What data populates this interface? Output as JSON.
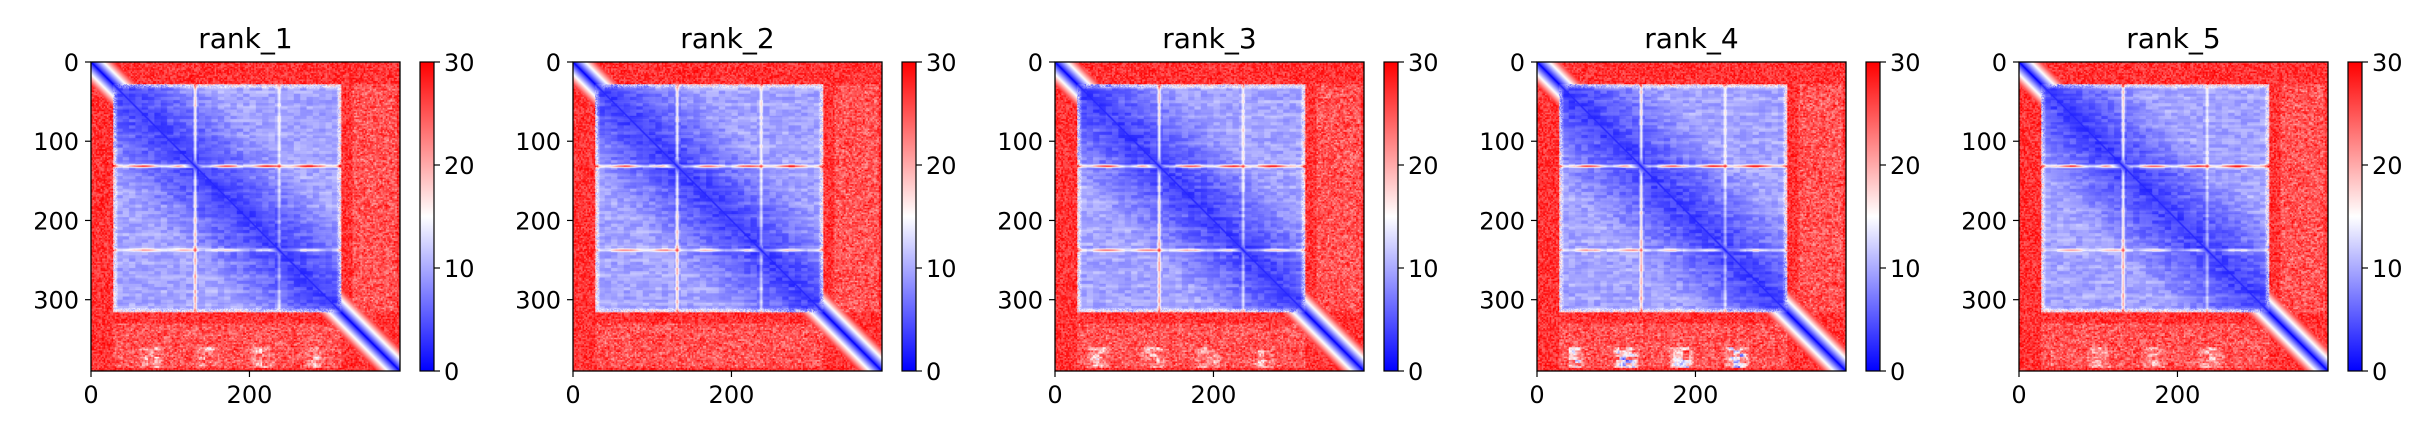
{
  "chart_data": [
    {
      "type": "heatmap",
      "title": "rank_1",
      "matrix_size": 390,
      "xticks": [
        "0",
        "200"
      ],
      "yticks": [
        "0",
        "100",
        "200",
        "300"
      ],
      "colorbar": {
        "min": 0,
        "max": 30,
        "ticks": [
          "0",
          "10",
          "20",
          "30"
        ],
        "colormap": "bwr"
      },
      "low_region_end": 315,
      "gap_start": 330,
      "stripes": [
        {
          "y": 131,
          "intensity": 0.85
        },
        {
          "y": 237,
          "intensity": 0.45
        }
      ],
      "bottom_band": "faint"
    },
    {
      "type": "heatmap",
      "title": "rank_2",
      "matrix_size": 390,
      "xticks": [
        "0",
        "200"
      ],
      "yticks": [
        "0",
        "100",
        "200",
        "300"
      ],
      "colorbar": {
        "min": 0,
        "max": 30,
        "ticks": [
          "0",
          "10",
          "20",
          "30"
        ],
        "colormap": "bwr"
      },
      "low_region_end": 315,
      "gap_start": 330,
      "stripes": [
        {
          "y": 131,
          "intensity": 0.8
        },
        {
          "y": 237,
          "intensity": 0.55
        }
      ],
      "bottom_band": "none"
    },
    {
      "type": "heatmap",
      "title": "rank_3",
      "matrix_size": 390,
      "xticks": [
        "0",
        "200"
      ],
      "yticks": [
        "0",
        "100",
        "200",
        "300"
      ],
      "colorbar": {
        "min": 0,
        "max": 30,
        "ticks": [
          "0",
          "10",
          "20",
          "30"
        ],
        "colormap": "bwr"
      },
      "low_region_end": 315,
      "gap_start": 330,
      "stripes": [
        {
          "y": 131,
          "intensity": 0.85
        },
        {
          "y": 237,
          "intensity": 0.55
        }
      ],
      "bottom_band": "faint"
    },
    {
      "type": "heatmap",
      "title": "rank_4",
      "matrix_size": 390,
      "xticks": [
        "0",
        "200"
      ],
      "yticks": [
        "0",
        "100",
        "200",
        "300"
      ],
      "colorbar": {
        "min": 0,
        "max": 30,
        "ticks": [
          "0",
          "10",
          "20",
          "30"
        ],
        "colormap": "bwr"
      },
      "low_region_end": 315,
      "gap_start": 330,
      "stripes": [
        {
          "y": 131,
          "intensity": 0.85
        },
        {
          "y": 237,
          "intensity": 0.5
        }
      ],
      "bottom_band": "strong"
    },
    {
      "type": "heatmap",
      "title": "rank_5",
      "matrix_size": 390,
      "xticks": [
        "0",
        "200"
      ],
      "yticks": [
        "0",
        "100",
        "200",
        "300"
      ],
      "colorbar": {
        "min": 0,
        "max": 30,
        "ticks": [
          "0",
          "10",
          "20",
          "30"
        ],
        "colormap": "bwr"
      },
      "low_region_end": 315,
      "gap_start": 330,
      "stripes": [
        {
          "y": 131,
          "intensity": 0.85
        },
        {
          "y": 237,
          "intensity": 0.45
        }
      ],
      "bottom_band": "faint"
    }
  ]
}
